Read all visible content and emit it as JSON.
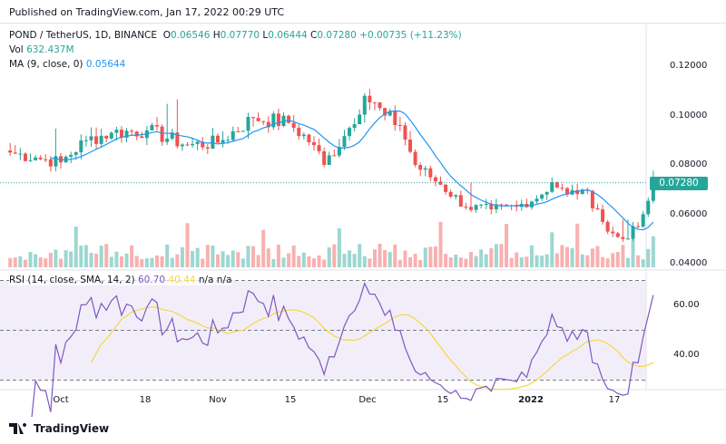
{
  "published": "Published on TradingView.com, Jan 17, 2022 00:29 UTC",
  "legend": {
    "symbol": "POND / TetherUS, 1D, BINANCE",
    "o_label": "O",
    "o": "0.06546",
    "h_label": "H",
    "h": "0.07770",
    "l_label": "L",
    "l": "0.06444",
    "c_label": "C",
    "c": "0.07280",
    "change": "+0.00735 (+11.23%)",
    "vol_label": "Vol",
    "vol": "632.437M",
    "ma_label": "MA (9, close, 0)",
    "ma": "0.05644"
  },
  "rsi_legend": {
    "label": "RSI (14, close, SMA, 14, 2)",
    "rsi": "60.70",
    "sma": "40.44",
    "na1": "n/a",
    "na2": "n/a"
  },
  "price_axis": [
    "0.12000",
    "0.10000",
    "0.08000",
    "0.06000",
    "0.04000"
  ],
  "last_price": "0.07280",
  "rsi_axis": [
    "60.00",
    "40.00"
  ],
  "time_axis": [
    "Oct",
    "18",
    "Nov",
    "15",
    "Dec",
    "15",
    "2022",
    "17"
  ],
  "footer": "TradingView",
  "colors": {
    "up": "#26a69a",
    "down": "#ef5350",
    "ma": "#2196f3",
    "rsi": "#7e57c2",
    "rsi_sma": "#f5d742"
  },
  "chart_data": {
    "type": "candlestick",
    "title": "POND / TetherUS, 1D, BINANCE",
    "ylim": [
      0.04,
      0.13
    ],
    "rsi_ylim": [
      20,
      80
    ],
    "close_keypoints_day_from_oct1": [
      [
        -10,
        0.085
      ],
      [
        -5,
        0.083
      ],
      [
        0,
        0.081
      ],
      [
        5,
        0.09
      ],
      [
        10,
        0.093
      ],
      [
        17,
        0.094
      ],
      [
        25,
        0.088
      ],
      [
        31,
        0.089
      ],
      [
        38,
        0.099
      ],
      [
        45,
        0.097
      ],
      [
        50,
        0.088
      ],
      [
        52,
        0.08
      ],
      [
        57,
        0.095
      ],
      [
        60,
        0.108
      ],
      [
        64,
        0.1
      ],
      [
        67,
        0.096
      ],
      [
        70,
        0.08
      ],
      [
        75,
        0.072
      ],
      [
        80,
        0.063
      ],
      [
        85,
        0.062
      ],
      [
        90,
        0.063
      ],
      [
        95,
        0.068
      ],
      [
        97,
        0.073
      ],
      [
        100,
        0.068
      ],
      [
        103,
        0.07
      ],
      [
        106,
        0.062
      ],
      [
        108,
        0.053
      ],
      [
        111,
        0.05
      ],
      [
        114,
        0.055
      ],
      [
        116,
        0.06546
      ],
      [
        117,
        0.0728
      ]
    ],
    "last_candle": {
      "open": 0.06546,
      "high": 0.0777,
      "low": 0.06444,
      "close": 0.0728,
      "volume": "632.437M"
    }
  }
}
